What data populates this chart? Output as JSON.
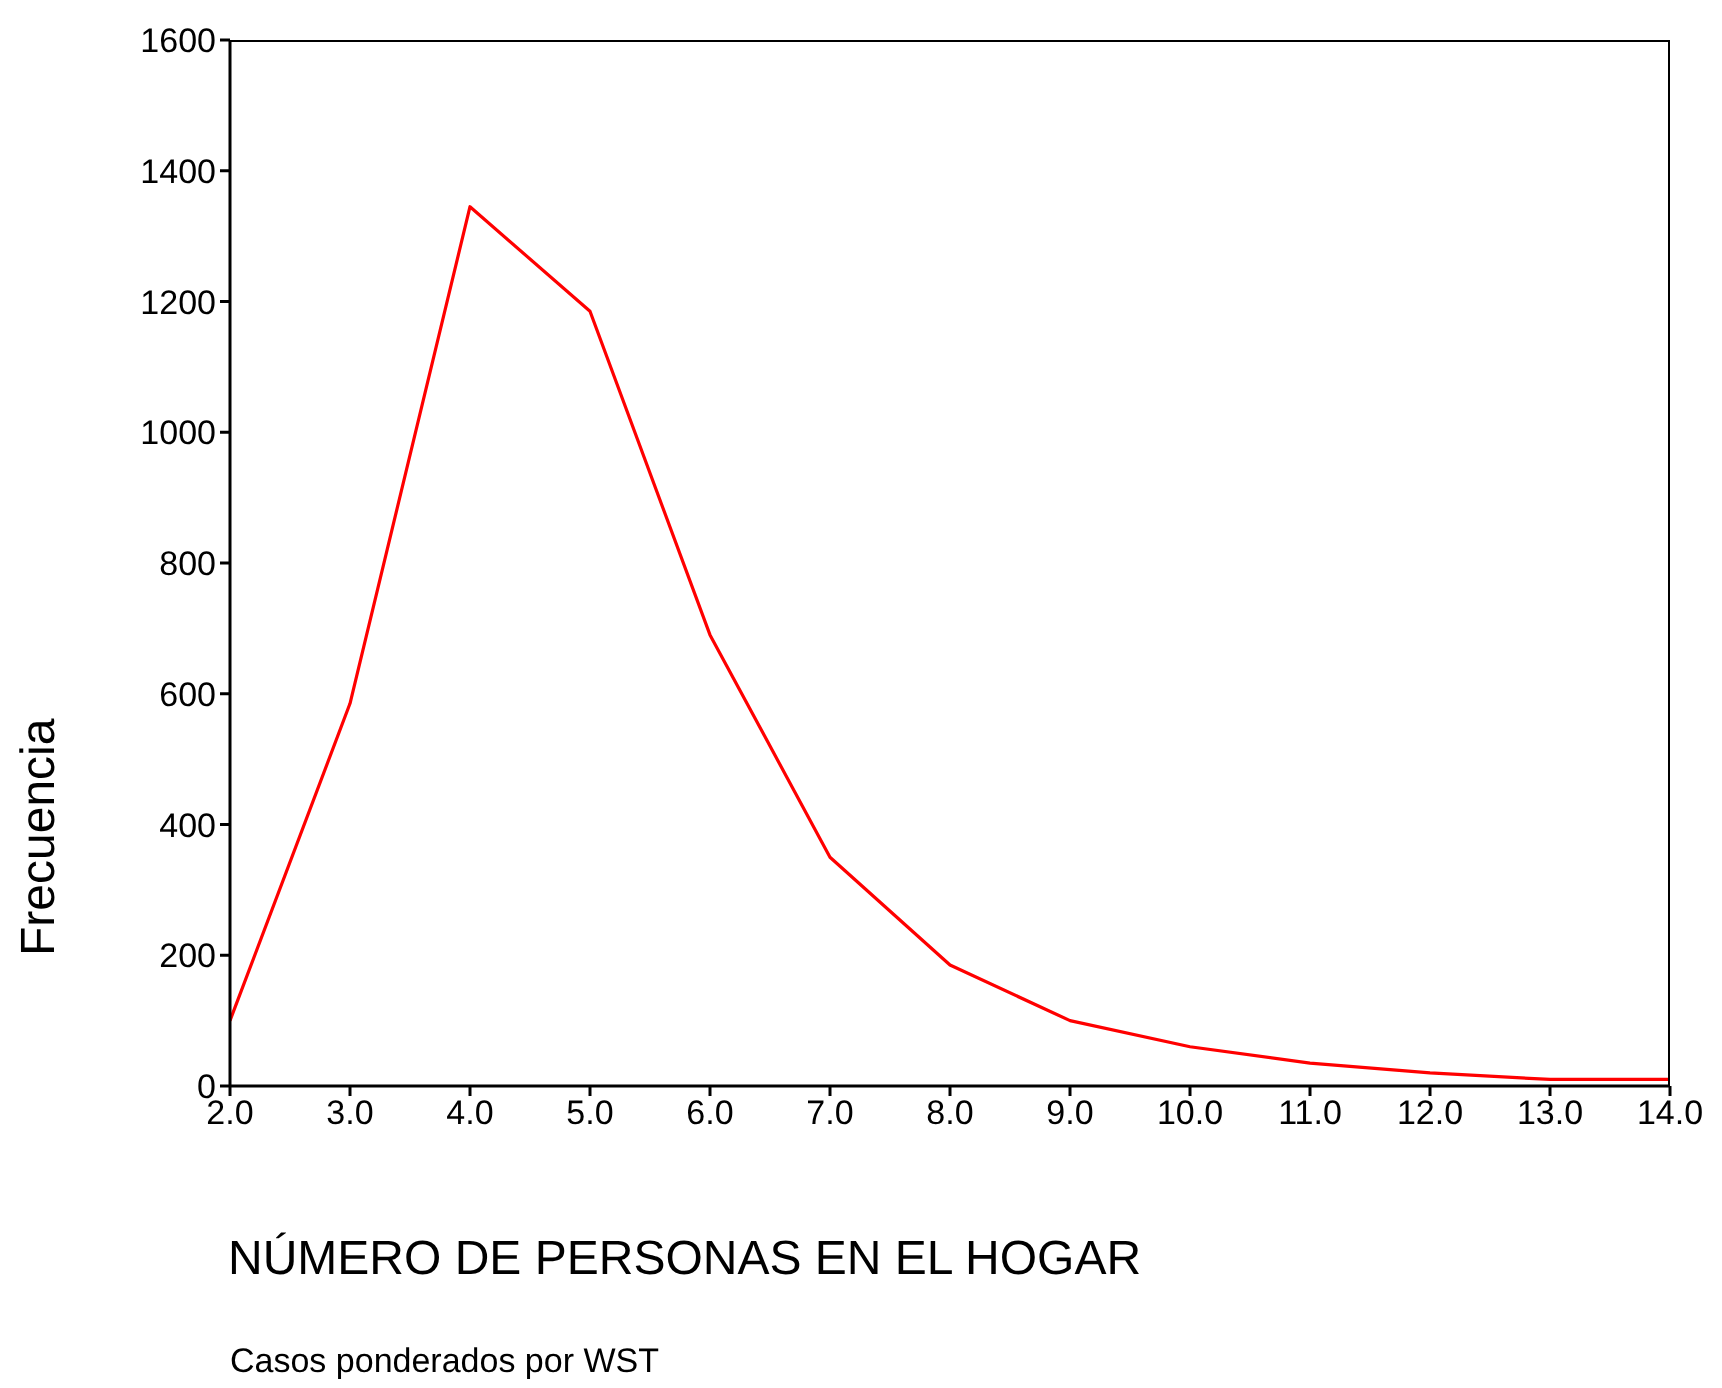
{
  "chart_data": {
    "type": "line",
    "xlabel": "NÚMERO DE PERSONAS EN EL HOGAR",
    "ylabel": "Frecuencia",
    "annotations": [
      "Casos ponderados por WST"
    ],
    "x": [
      2,
      3,
      4,
      5,
      6,
      7,
      8,
      9,
      10,
      11,
      12,
      13,
      14
    ],
    "series": [
      {
        "color": "#ff0000",
        "values": [
          100,
          585,
          1345,
          1185,
          690,
          350,
          185,
          100,
          60,
          35,
          20,
          10,
          10
        ]
      }
    ],
    "xlim": [
      2,
      14
    ],
    "xticks": [
      {
        "value": 2,
        "label": "2.0"
      },
      {
        "value": 3,
        "label": "3.0"
      },
      {
        "value": 4,
        "label": "4.0"
      },
      {
        "value": 5,
        "label": "5.0"
      },
      {
        "value": 6,
        "label": "6.0"
      },
      {
        "value": 7,
        "label": "7.0"
      },
      {
        "value": 8,
        "label": "8.0"
      },
      {
        "value": 9,
        "label": "9.0"
      },
      {
        "value": 10,
        "label": "10.0"
      },
      {
        "value": 11,
        "label": "11.0"
      },
      {
        "value": 12,
        "label": "12.0"
      },
      {
        "value": 13,
        "label": "13.0"
      },
      {
        "value": 14,
        "label": "14.0"
      }
    ],
    "ylim": [
      0,
      1600
    ],
    "yticks": [
      0,
      200,
      400,
      600,
      800,
      1000,
      1200,
      1400,
      1600
    ],
    "grid": false,
    "marker": "none",
    "line_style": "solid"
  }
}
